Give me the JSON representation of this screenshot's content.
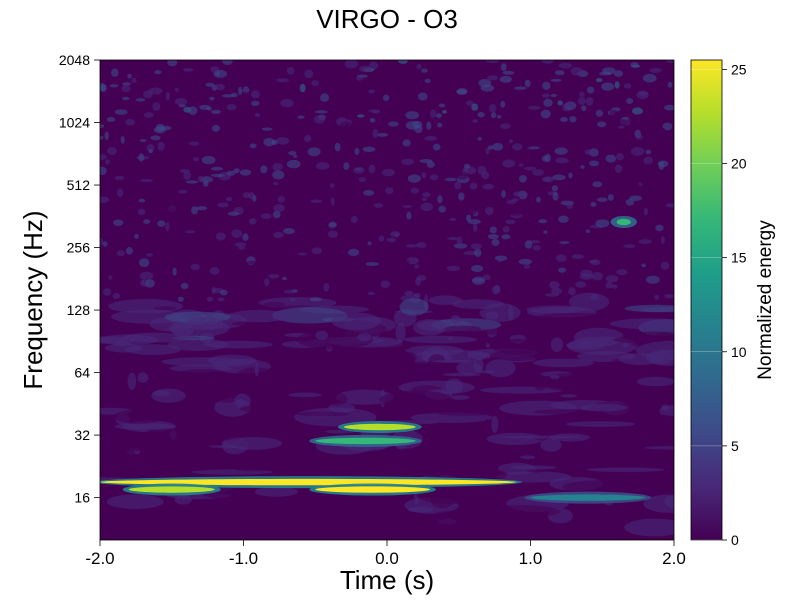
{
  "chart_data": {
    "type": "heatmap",
    "title": "VIRGO - O3",
    "xlabel": "Time (s)",
    "ylabel": "Frequency (Hz)",
    "xlim": [
      -2.0,
      2.0
    ],
    "ylim": [
      10,
      2048
    ],
    "yscale": "log2",
    "x_ticks": [
      {
        "value": -2.0,
        "label": "-2.0"
      },
      {
        "value": -1.0,
        "label": "-1.0"
      },
      {
        "value": 0.0,
        "label": "0.0"
      },
      {
        "value": 1.0,
        "label": "1.0"
      },
      {
        "value": 2.0,
        "label": "2.0"
      }
    ],
    "y_ticks": [
      {
        "value": 16,
        "label": "16"
      },
      {
        "value": 32,
        "label": "32"
      },
      {
        "value": 64,
        "label": "64"
      },
      {
        "value": 128,
        "label": "128"
      },
      {
        "value": 256,
        "label": "256"
      },
      {
        "value": 512,
        "label": "512"
      },
      {
        "value": 1024,
        "label": "1024"
      },
      {
        "value": 2048,
        "label": "2048"
      }
    ],
    "colorbar": {
      "label": "Normalized energy",
      "range": [
        0,
        25.5
      ],
      "colormap": [
        "#440154",
        "#482878",
        "#3e4a89",
        "#31688e",
        "#26828e",
        "#1f9e89",
        "#35b779",
        "#6ece58",
        "#b5de2b",
        "#fde725"
      ],
      "ticks": [
        {
          "value": 0,
          "label": "0"
        },
        {
          "value": 5,
          "label": "5"
        },
        {
          "value": 10,
          "label": "10"
        },
        {
          "value": 15,
          "label": "15"
        },
        {
          "value": 20,
          "label": "20"
        },
        {
          "value": 25,
          "label": "25"
        }
      ]
    },
    "features": [
      {
        "t_start": -2.0,
        "t_end": 0.9,
        "f": 19,
        "energy": 25
      },
      {
        "t_start": -0.5,
        "t_end": 0.3,
        "f": 17.5,
        "energy": 25
      },
      {
        "t_start": -1.8,
        "t_end": -1.2,
        "f": 17.5,
        "energy": 22
      },
      {
        "t_start": -0.5,
        "t_end": 0.2,
        "f": 30,
        "energy": 18
      },
      {
        "t_start": -0.3,
        "t_end": 0.2,
        "f": 35,
        "energy": 22
      },
      {
        "t_start": 1.0,
        "t_end": 1.8,
        "f": 16,
        "energy": 10
      },
      {
        "t_start": 1.6,
        "t_end": 1.7,
        "f": 340,
        "energy": 16
      }
    ]
  }
}
